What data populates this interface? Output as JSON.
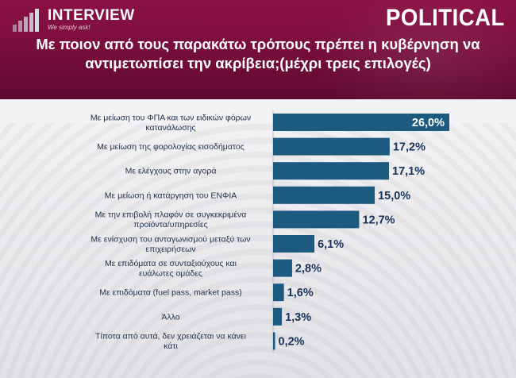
{
  "header": {
    "brand": "INTERVIEW",
    "tagline": "We simply ask!",
    "publisher": "POLITICAL",
    "title": "Με ποιον από τους παρακάτω τρόπους πρέπει η κυβέρνηση να αντιμετωπίσει την ακρίβεια;(μέχρι τρεις επιλογές)"
  },
  "colors": {
    "header_bg": "#7a0e3c",
    "bar": "#1c5a80",
    "bar_highlight": "#1a5f8a",
    "label_text": "#1e2f4d"
  },
  "chart_data": {
    "type": "bar",
    "orientation": "horizontal",
    "title": "Με ποιον από τους παρακάτω τρόπους πρέπει η κυβέρνηση να αντιμετωπίσει την ακρίβεια;(μέχρι τρεις επιλογές)",
    "categories": [
      [
        "Με μείωση του ΦΠΑ και των ειδικών φόρων",
        "κατανάλωσης"
      ],
      [
        "Με μείωση της φορολογίας εισοδήματος"
      ],
      [
        "Με ελέγχους στην αγορά"
      ],
      [
        "Με μείωση ή κατάργηση του ΕΝΦΙΑ"
      ],
      [
        "Με την επιβολή πλαφόν σε συγκεκριμένα",
        "προϊόντα/υπηρεσίες"
      ],
      [
        "Με ενίσχυση του ανταγωνισμού μεταξύ των",
        "επιχειρήσεων"
      ],
      [
        "Με επιδόματα σε συνταξιούχους και",
        "ευάλωτες ομάδες"
      ],
      [
        "Με επιδόματα (fuel pass, market pass)"
      ],
      [
        "Άλλο"
      ],
      [
        "Τίποτα από αυτά, δεν χρειάζεται να κάνει",
        "κάτι"
      ]
    ],
    "values": [
      26.0,
      17.2,
      17.1,
      15.0,
      12.7,
      6.1,
      2.8,
      1.6,
      1.3,
      0.2
    ],
    "value_labels": [
      "26,0%",
      "17,2%",
      "17,1%",
      "15,0%",
      "12,7%",
      "6,1%",
      "2,8%",
      "1,6%",
      "1,3%",
      "0,2%"
    ],
    "xlim": [
      0,
      26
    ],
    "grid": false,
    "legend": "none"
  }
}
